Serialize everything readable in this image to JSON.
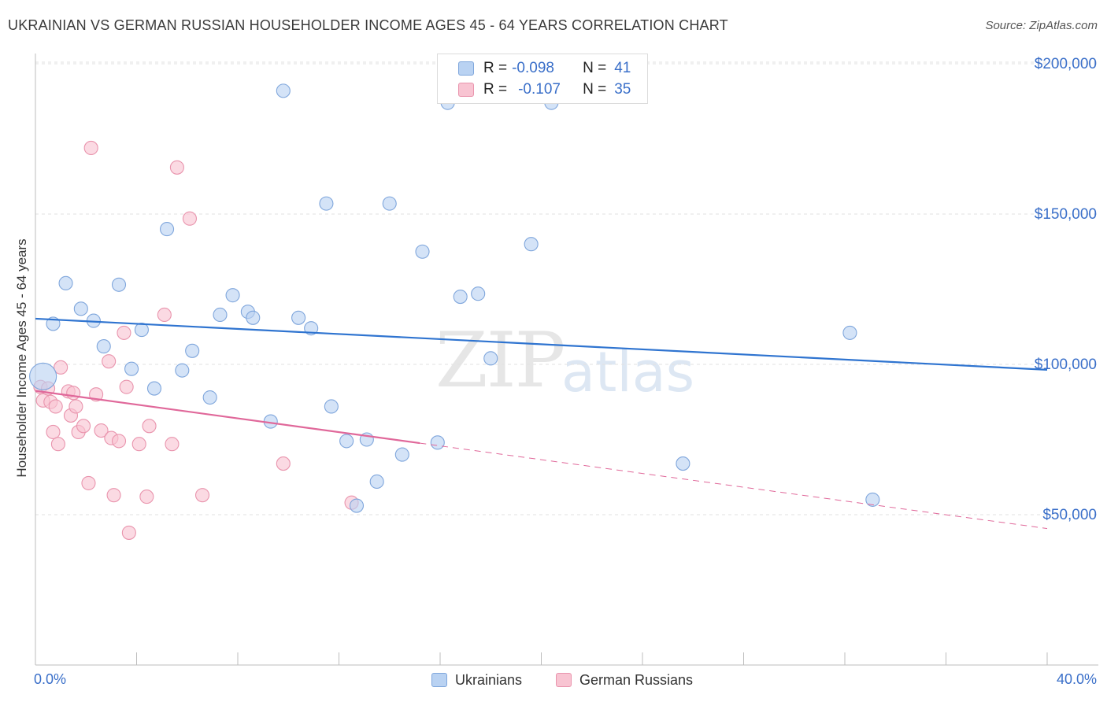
{
  "header": {
    "title": "UKRAINIAN VS GERMAN RUSSIAN HOUSEHOLDER INCOME AGES 45 - 64 YEARS CORRELATION CHART",
    "source": "Source: ZipAtlas.com"
  },
  "legend": {
    "rows": [
      {
        "r_label": "R =",
        "r_value": "-0.098",
        "n_label": "N =",
        "n_value": "41"
      },
      {
        "r_label": "R =",
        "r_value": "-0.107",
        "n_label": "N =",
        "n_value": "35"
      }
    ]
  },
  "watermark": {
    "zip": "ZIP",
    "atlas": "atlas"
  },
  "colors": {
    "blue_fill": "#b9d2f2",
    "blue_stroke": "#7fa6dc",
    "blue_line": "#2f74d0",
    "pink_fill": "#f8c4d2",
    "pink_stroke": "#e994ad",
    "pink_line": "#e0689a",
    "axis_text": "#3a6fc9",
    "grid": "#e2e2e2"
  },
  "chart_data": {
    "type": "scatter",
    "title": "UKRAINIAN VS GERMAN RUSSIAN HOUSEHOLDER INCOME AGES 45 - 64 YEARS CORRELATION CHART",
    "xlabel": "",
    "ylabel": "Householder Income Ages 45 - 64 years",
    "xlim": [
      0,
      40
    ],
    "ylim": [
      0,
      210000
    ],
    "x_tick_labels": [
      "0.0%",
      "40.0%"
    ],
    "y_ticks": [
      50000,
      100000,
      150000,
      200000
    ],
    "y_tick_labels": [
      "$50,000",
      "$100,000",
      "$150,000",
      "$200,000"
    ],
    "series": [
      {
        "name": "Ukrainians",
        "r": -0.098,
        "n": 41,
        "trend": {
          "x": [
            0,
            40
          ],
          "y": [
            115200,
            98200
          ]
        },
        "points": [
          {
            "x": 0.3,
            "y": 96000,
            "big": true
          },
          {
            "x": 0.7,
            "y": 113500
          },
          {
            "x": 1.2,
            "y": 127000
          },
          {
            "x": 1.8,
            "y": 118500
          },
          {
            "x": 2.3,
            "y": 114500
          },
          {
            "x": 2.7,
            "y": 106000
          },
          {
            "x": 3.3,
            "y": 126500
          },
          {
            "x": 3.8,
            "y": 98500
          },
          {
            "x": 4.2,
            "y": 111500
          },
          {
            "x": 4.7,
            "y": 92000
          },
          {
            "x": 5.2,
            "y": 145000
          },
          {
            "x": 5.8,
            "y": 98000
          },
          {
            "x": 6.2,
            "y": 104500
          },
          {
            "x": 6.9,
            "y": 89000
          },
          {
            "x": 7.3,
            "y": 116500
          },
          {
            "x": 7.8,
            "y": 123000
          },
          {
            "x": 8.4,
            "y": 117500
          },
          {
            "x": 8.6,
            "y": 115500
          },
          {
            "x": 9.3,
            "y": 81000
          },
          {
            "x": 9.8,
            "y": 191000
          },
          {
            "x": 10.4,
            "y": 115500
          },
          {
            "x": 10.9,
            "y": 112000
          },
          {
            "x": 11.5,
            "y": 153500
          },
          {
            "x": 11.7,
            "y": 86000
          },
          {
            "x": 12.3,
            "y": 74500
          },
          {
            "x": 12.7,
            "y": 53000
          },
          {
            "x": 13.1,
            "y": 75000
          },
          {
            "x": 13.5,
            "y": 61000
          },
          {
            "x": 14.0,
            "y": 153500
          },
          {
            "x": 14.5,
            "y": 70000
          },
          {
            "x": 15.3,
            "y": 137500
          },
          {
            "x": 15.9,
            "y": 74000
          },
          {
            "x": 16.3,
            "y": 187000
          },
          {
            "x": 16.8,
            "y": 122500
          },
          {
            "x": 17.5,
            "y": 123500
          },
          {
            "x": 18.0,
            "y": 102000
          },
          {
            "x": 19.6,
            "y": 140000
          },
          {
            "x": 20.4,
            "y": 187000
          },
          {
            "x": 25.6,
            "y": 67000
          },
          {
            "x": 32.2,
            "y": 110500
          },
          {
            "x": 33.1,
            "y": 55000
          }
        ]
      },
      {
        "name": "German Russians",
        "r": -0.107,
        "n": 35,
        "trend": {
          "x": [
            0,
            15.2
          ],
          "y": [
            91200,
            73800
          ]
        },
        "trend_dashed": {
          "x": [
            15.2,
            40
          ],
          "y": [
            73800,
            45400
          ]
        },
        "points": [
          {
            "x": 0.2,
            "y": 92500
          },
          {
            "x": 0.3,
            "y": 88000
          },
          {
            "x": 0.5,
            "y": 92000
          },
          {
            "x": 0.6,
            "y": 87500
          },
          {
            "x": 0.7,
            "y": 77500
          },
          {
            "x": 0.8,
            "y": 86000
          },
          {
            "x": 0.9,
            "y": 73500
          },
          {
            "x": 1.0,
            "y": 99000
          },
          {
            "x": 1.3,
            "y": 91000
          },
          {
            "x": 1.4,
            "y": 83000
          },
          {
            "x": 1.5,
            "y": 90500
          },
          {
            "x": 1.6,
            "y": 86000
          },
          {
            "x": 1.7,
            "y": 77500
          },
          {
            "x": 1.9,
            "y": 79500
          },
          {
            "x": 2.1,
            "y": 60500
          },
          {
            "x": 2.2,
            "y": 172000
          },
          {
            "x": 2.4,
            "y": 90000
          },
          {
            "x": 2.6,
            "y": 78000
          },
          {
            "x": 2.9,
            "y": 101000
          },
          {
            "x": 3.0,
            "y": 75500
          },
          {
            "x": 3.1,
            "y": 56500
          },
          {
            "x": 3.3,
            "y": 74500
          },
          {
            "x": 3.5,
            "y": 110500
          },
          {
            "x": 3.6,
            "y": 92500
          },
          {
            "x": 3.7,
            "y": 44000
          },
          {
            "x": 4.1,
            "y": 73500
          },
          {
            "x": 4.4,
            "y": 56000
          },
          {
            "x": 4.5,
            "y": 79500
          },
          {
            "x": 5.1,
            "y": 116500
          },
          {
            "x": 5.4,
            "y": 73500
          },
          {
            "x": 5.6,
            "y": 165500
          },
          {
            "x": 6.1,
            "y": 148500
          },
          {
            "x": 6.6,
            "y": 56500
          },
          {
            "x": 9.8,
            "y": 67000
          },
          {
            "x": 12.5,
            "y": 54000
          }
        ]
      }
    ]
  }
}
